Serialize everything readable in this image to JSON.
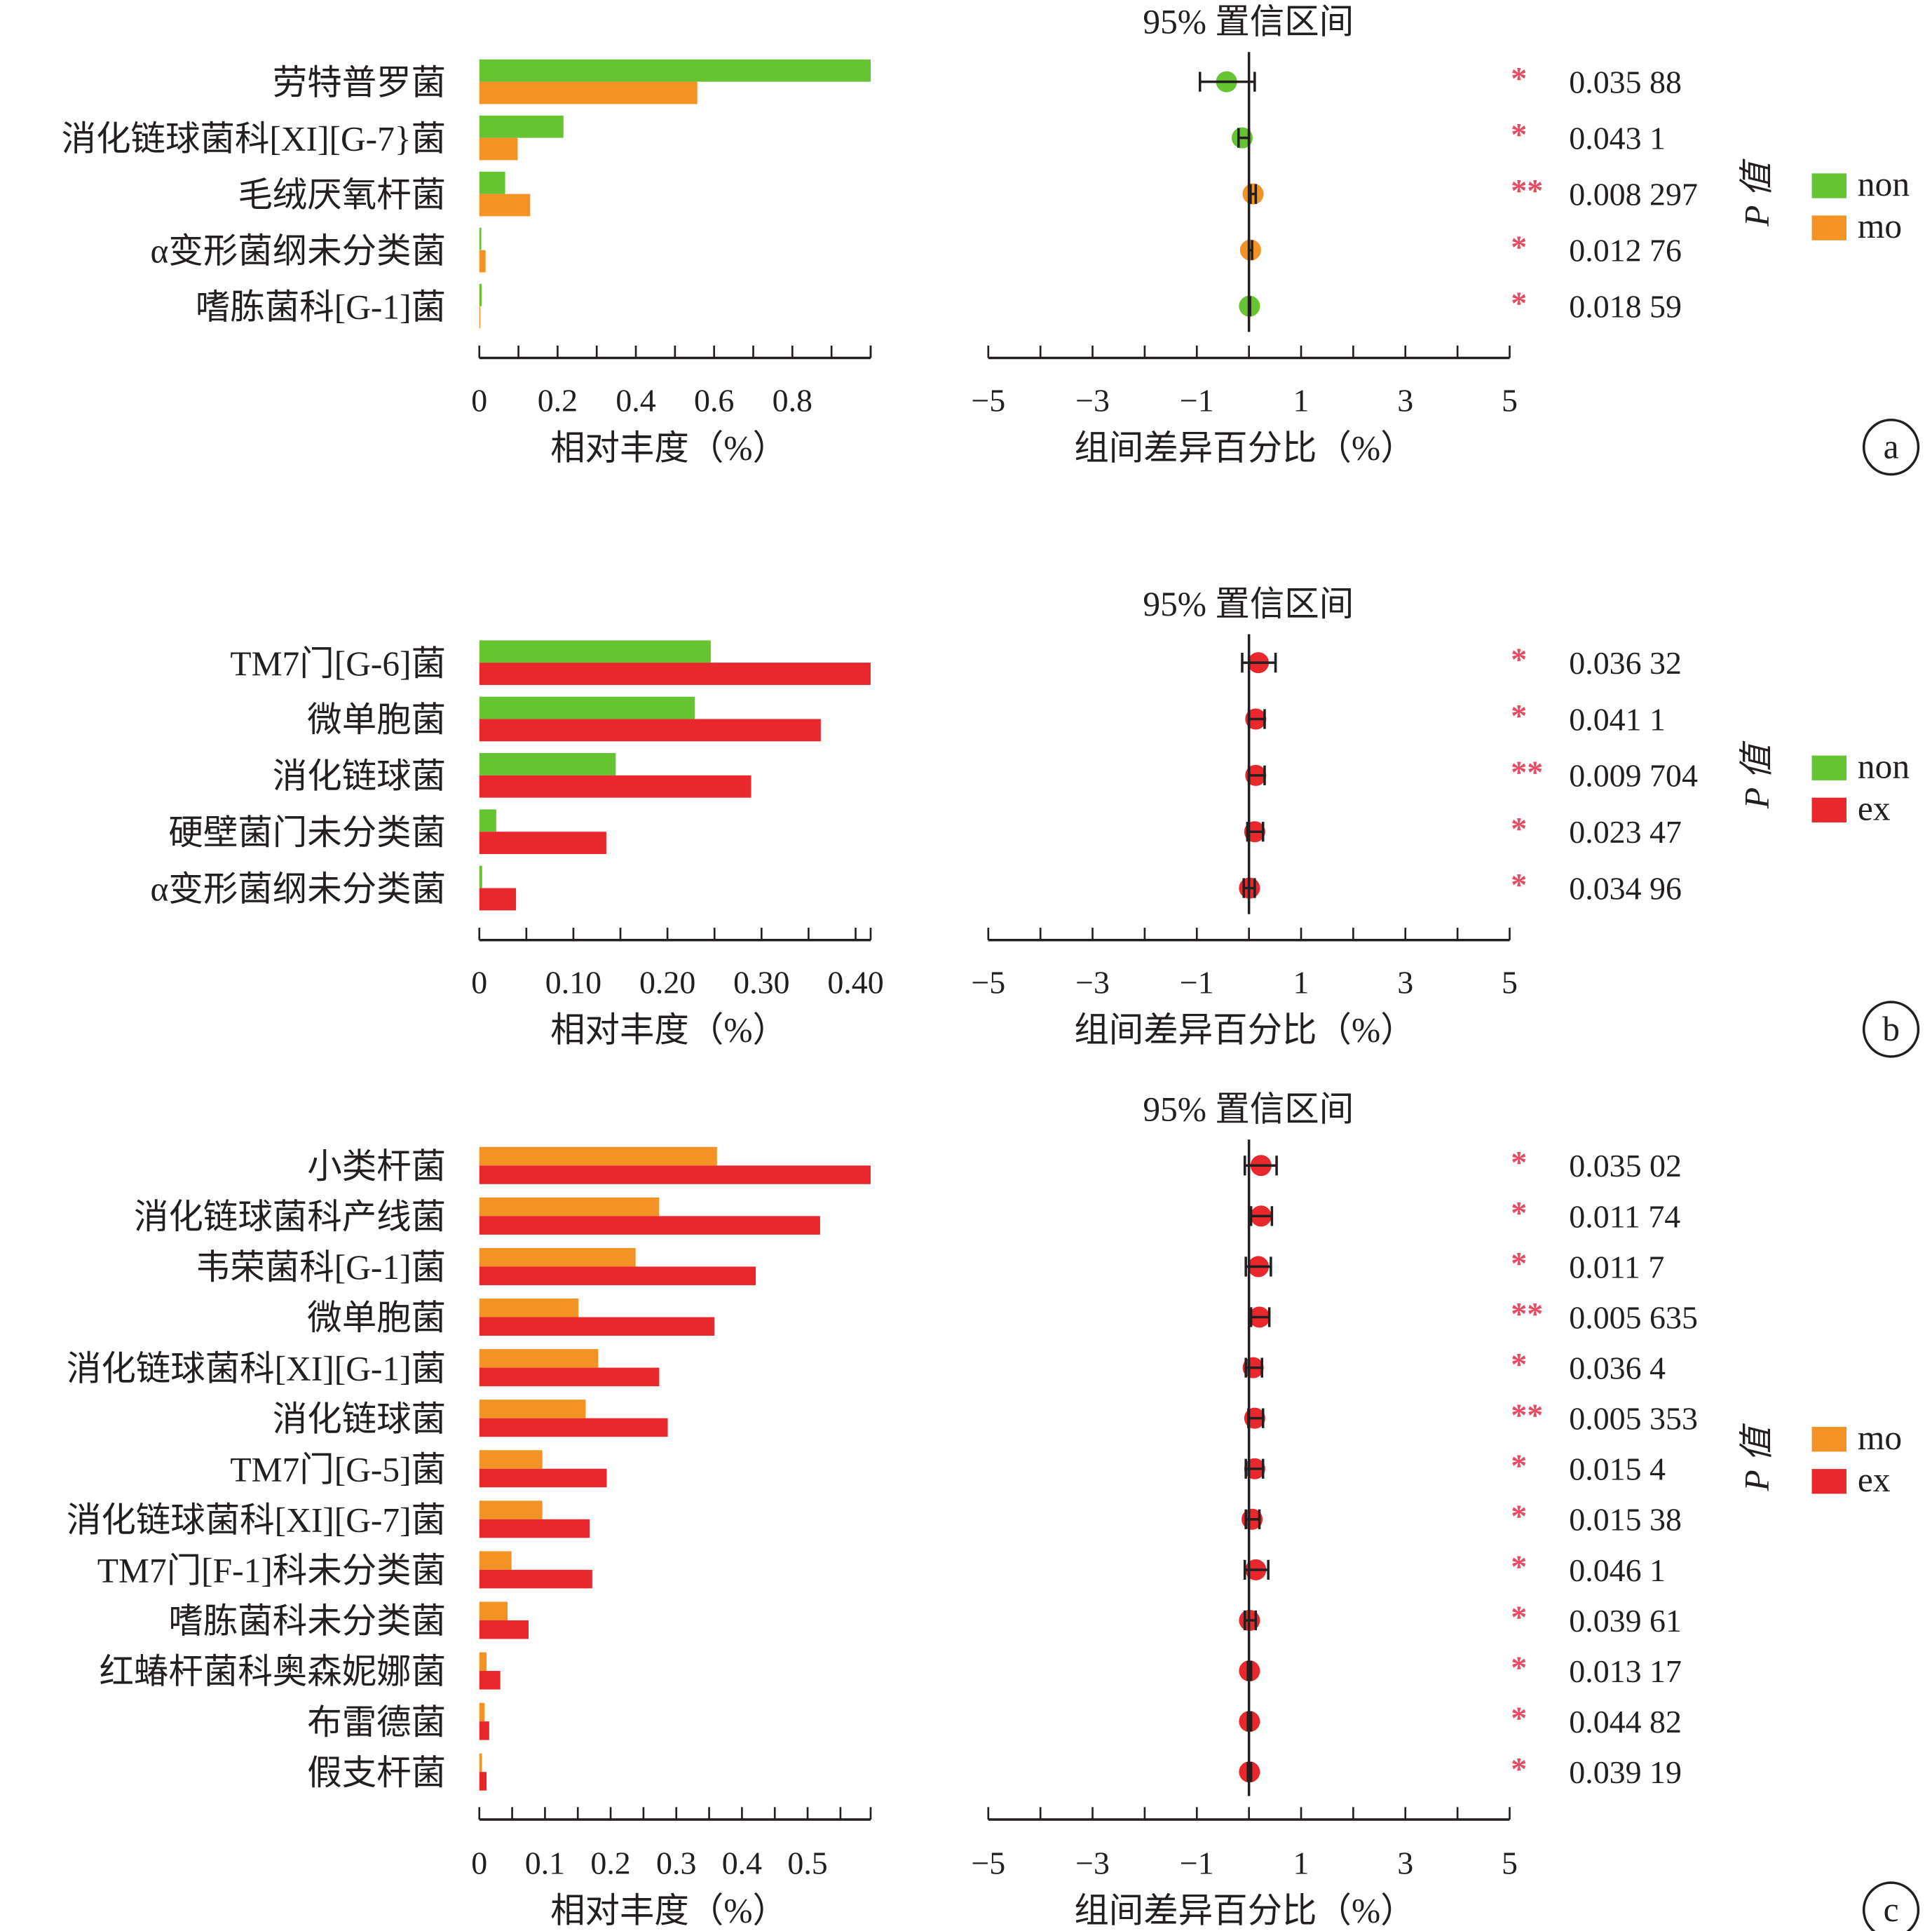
{
  "colors": {
    "non": "#66c331",
    "mo": "#f39325",
    "ex": "#e9282d",
    "star": "#e84a5f",
    "axis": "#231f20"
  },
  "chart_data": [
    {
      "type": "bar",
      "panel_label": "a",
      "ci_title": "95% 置信区间",
      "xlabel": "相对丰度（%）",
      "ci_xlabel": "组间差异百分比（%）",
      "pvalue_label": "P 值",
      "xlim": [
        0,
        1.0
      ],
      "xticks": [
        "0",
        "0.2",
        "0.4",
        "0.6",
        "0.8"
      ],
      "xtick_values": [
        0,
        0.2,
        0.4,
        0.6,
        0.8
      ],
      "minor_step": 0.1,
      "ci_xlim": [
        -5,
        5
      ],
      "ci_xticks": [
        "−5",
        "−3",
        "−1",
        "1",
        "3",
        "5"
      ],
      "ci_xtick_values": [
        -5,
        -3,
        -1,
        1,
        3,
        5
      ],
      "legend": [
        {
          "name": "non",
          "color": "#66c331"
        },
        {
          "name": "mo",
          "color": "#f39325"
        }
      ],
      "categories": [
        "劳特普罗菌",
        "消化链球菌科[XI][G-7}菌",
        "毛绒厌氧杆菌",
        "α变形菌纲未分类菌",
        "嗜胨菌科[G-1]菌"
      ],
      "series": [
        {
          "name": "non",
          "values": [
            1.0,
            0.215,
            0.066,
            0.005,
            0.006
          ]
        },
        {
          "name": "mo",
          "values": [
            0.557,
            0.098,
            0.13,
            0.016,
            0.002
          ]
        }
      ],
      "ci": [
        {
          "estimate": -0.43,
          "low": -0.94,
          "high": 0.11,
          "group": "non"
        },
        {
          "estimate": -0.13,
          "low": -0.2,
          "high": 0.0,
          "group": "non"
        },
        {
          "estimate": 0.08,
          "low": 0.03,
          "high": 0.13,
          "group": "mo"
        },
        {
          "estimate": 0.03,
          "low": 0.0,
          "high": 0.06,
          "group": "mo"
        },
        {
          "estimate": 0.01,
          "low": 0.0,
          "high": 0.02,
          "group": "non"
        }
      ],
      "stars": [
        "*",
        "*",
        "**",
        "*",
        "*"
      ],
      "p_values": [
        "0.035 88",
        "0.043 1",
        "0.008 297",
        "0.012 76",
        "0.018 59"
      ]
    },
    {
      "type": "bar",
      "panel_label": "b",
      "ci_title": "95% 置信区间",
      "xlabel": "相对丰度（%）",
      "ci_xlabel": "组间差异百分比（%）",
      "pvalue_label": "P 值",
      "xlim": [
        0,
        0.416
      ],
      "xticks": [
        "0",
        "0.10",
        "0.20",
        "0.30",
        "0.40"
      ],
      "xtick_values": [
        0,
        0.1,
        0.2,
        0.3,
        0.4
      ],
      "minor_step": 0.05,
      "ci_xlim": [
        -5,
        5
      ],
      "ci_xticks": [
        "−5",
        "−3",
        "−1",
        "1",
        "3",
        "5"
      ],
      "ci_xtick_values": [
        -5,
        -3,
        -1,
        1,
        3,
        5
      ],
      "legend": [
        {
          "name": "non",
          "color": "#66c331"
        },
        {
          "name": "ex",
          "color": "#e9282d"
        }
      ],
      "categories": [
        "TM7门[G-6]菌",
        "微单胞菌",
        "消化链球菌",
        "硬壁菌门未分类菌",
        "α变形菌纲未分类菌"
      ],
      "series": [
        {
          "name": "non",
          "values": [
            0.246,
            0.229,
            0.145,
            0.018,
            0.003
          ]
        },
        {
          "name": "ex",
          "values": [
            0.416,
            0.363,
            0.289,
            0.135,
            0.039
          ]
        }
      ],
      "ci": [
        {
          "estimate": 0.18,
          "low": -0.13,
          "high": 0.51,
          "group": "ex"
        },
        {
          "estimate": 0.13,
          "low": 0.0,
          "high": 0.3,
          "group": "ex"
        },
        {
          "estimate": 0.13,
          "low": 0.0,
          "high": 0.3,
          "group": "ex"
        },
        {
          "estimate": 0.11,
          "low": -0.03,
          "high": 0.27,
          "group": "ex"
        },
        {
          "estimate": 0.01,
          "low": -0.1,
          "high": 0.11,
          "group": "ex"
        }
      ],
      "stars": [
        "*",
        "*",
        "**",
        "*",
        "*"
      ],
      "p_values": [
        "0.036 32",
        "0.041 1",
        "0.009 704",
        "0.023 47",
        "0.034 96"
      ]
    },
    {
      "type": "bar",
      "panel_label": "c",
      "ci_title": "95% 置信区间",
      "xlabel": "相对丰度（%）",
      "ci_xlabel": "组间差异百分比（%）",
      "pvalue_label": "P 值",
      "xlim": [
        0,
        0.596
      ],
      "xticks": [
        "0",
        "0.1",
        "0.2",
        "0.3",
        "0.4",
        "0.5"
      ],
      "xtick_values": [
        0,
        0.1,
        0.2,
        0.3,
        0.4,
        0.5
      ],
      "minor_step": 0.05,
      "ci_xlim": [
        -5,
        5
      ],
      "ci_xticks": [
        "−5",
        "−3",
        "−1",
        "1",
        "3",
        "5"
      ],
      "ci_xtick_values": [
        -5,
        -3,
        -1,
        1,
        3,
        5
      ],
      "legend": [
        {
          "name": "mo",
          "color": "#f39325"
        },
        {
          "name": "ex",
          "color": "#e9282d"
        }
      ],
      "categories": [
        "小类杆菌",
        "消化链球菌科产线菌",
        "韦荣菌科[G-1]菌",
        "微单胞菌",
        "消化链球菌科[XI][G-1]菌",
        "消化链球菌",
        "TM7门[G-5]菌",
        "消化链球菌科[XI][G-7]菌",
        "TM7门[F-1]科未分类菌",
        "嗜胨菌科未分类菌",
        "红蝽杆菌科奥森妮娜菌",
        "布雷德菌",
        "假支杆菌"
      ],
      "series": [
        {
          "name": "mo",
          "values": [
            0.362,
            0.274,
            0.238,
            0.151,
            0.181,
            0.162,
            0.096,
            0.096,
            0.049,
            0.043,
            0.011,
            0.008,
            0.004
          ]
        },
        {
          "name": "ex",
          "values": [
            0.596,
            0.519,
            0.421,
            0.358,
            0.274,
            0.287,
            0.194,
            0.168,
            0.172,
            0.075,
            0.032,
            0.015,
            0.011
          ]
        }
      ],
      "ci": [
        {
          "estimate": 0.23,
          "low": -0.08,
          "high": 0.53,
          "group": "ex"
        },
        {
          "estimate": 0.23,
          "low": 0.04,
          "high": 0.44,
          "group": "ex"
        },
        {
          "estimate": 0.18,
          "low": -0.06,
          "high": 0.42,
          "group": "ex"
        },
        {
          "estimate": 0.2,
          "low": 0.04,
          "high": 0.39,
          "group": "ex"
        },
        {
          "estimate": 0.08,
          "low": -0.06,
          "high": 0.25,
          "group": "ex"
        },
        {
          "estimate": 0.11,
          "low": -0.01,
          "high": 0.27,
          "group": "ex"
        },
        {
          "estimate": 0.11,
          "low": -0.06,
          "high": 0.27,
          "group": "ex"
        },
        {
          "estimate": 0.06,
          "low": -0.06,
          "high": 0.2,
          "group": "ex"
        },
        {
          "estimate": 0.13,
          "low": -0.08,
          "high": 0.37,
          "group": "ex"
        },
        {
          "estimate": 0.01,
          "low": -0.08,
          "high": 0.13,
          "group": "ex"
        },
        {
          "estimate": 0.01,
          "low": -0.02,
          "high": 0.04,
          "group": "ex"
        },
        {
          "estimate": 0.01,
          "low": -0.02,
          "high": 0.04,
          "group": "ex"
        },
        {
          "estimate": 0.01,
          "low": -0.02,
          "high": 0.04,
          "group": "ex"
        }
      ],
      "stars": [
        "*",
        "*",
        "*",
        "**",
        "*",
        "**",
        "*",
        "*",
        "*",
        "*",
        "*",
        "*",
        "*"
      ],
      "p_values": [
        "0.035 02",
        "0.011 74",
        "0.011 7",
        "0.005 635",
        "0.036 4",
        "0.005 353",
        "0.015 4",
        "0.015 38",
        "0.046 1",
        "0.039 61",
        "0.013 17",
        "0.044 82",
        "0.039 19"
      ]
    }
  ]
}
